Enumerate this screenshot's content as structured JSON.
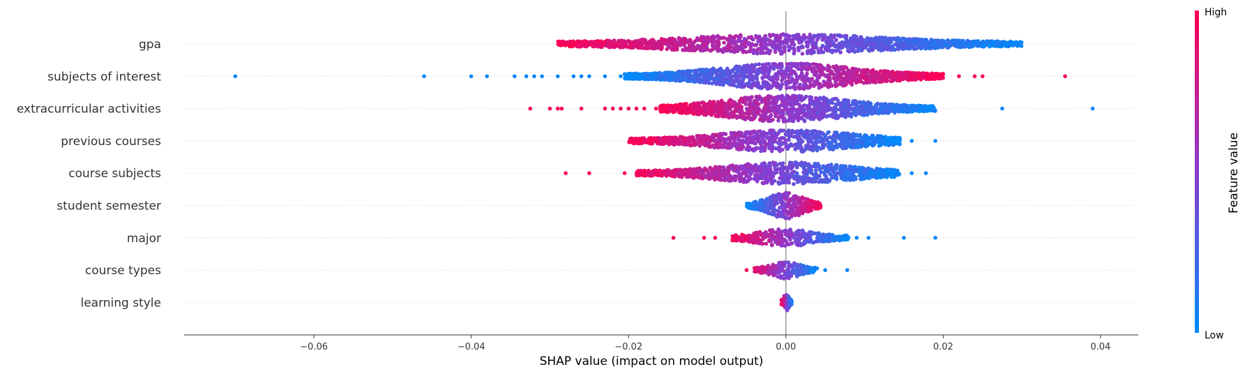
{
  "chart_data": {
    "type": "scatter",
    "variant": "shap-beeswarm",
    "title": "",
    "xlabel": "SHAP value (impact on model output)",
    "ylabel": "",
    "xlim": [
      -0.0765,
      0.0448
    ],
    "xticks": [
      -0.06,
      -0.04,
      -0.02,
      0.0,
      0.02,
      0.04
    ],
    "xtick_labels": [
      "−0.06",
      "−0.04",
      "−0.02",
      "0.00",
      "0.02",
      "0.04"
    ],
    "grid": false,
    "features": [
      {
        "name": "gpa",
        "min": -0.0292,
        "max": 0.03,
        "corr": -1,
        "width": 0.7,
        "outliers": [],
        "dense": [
          [
            -0.029,
            0.03
          ]
        ]
      },
      {
        "name": "subjects of interest",
        "min": -0.0205,
        "max": 0.02,
        "corr": 1,
        "width": 1.0,
        "outliers": [
          -0.07,
          -0.046,
          -0.04,
          -0.038,
          -0.0345,
          -0.033,
          -0.032,
          -0.031,
          -0.029,
          -0.027,
          -0.026,
          -0.025,
          -0.023,
          -0.021,
          0.022,
          0.024,
          0.025,
          0.0355
        ],
        "dense": [
          [
            -0.0205,
            0.02
          ]
        ]
      },
      {
        "name": "extracurricular activities",
        "min": -0.016,
        "max": 0.019,
        "corr": -1,
        "width": 1.0,
        "outliers": [
          -0.0325,
          -0.03,
          -0.029,
          -0.0285,
          -0.026,
          -0.023,
          -0.022,
          -0.021,
          -0.02,
          -0.019,
          -0.018,
          -0.0165,
          0.0275,
          0.039
        ],
        "dense": [
          [
            -0.016,
            0.019
          ]
        ]
      },
      {
        "name": "previous courses",
        "min": -0.02,
        "max": 0.0145,
        "corr": -1,
        "width": 0.8,
        "outliers": [
          0.016,
          0.019
        ],
        "dense": [
          [
            -0.02,
            0.0145
          ]
        ]
      },
      {
        "name": "course subjects",
        "min": -0.0205,
        "max": 0.0145,
        "corr": -1,
        "width": 0.8,
        "outliers": [
          -0.028,
          -0.025,
          -0.0205,
          0.016,
          0.0178
        ],
        "dense": [
          [
            -0.019,
            0.0145
          ]
        ]
      },
      {
        "name": "student semester",
        "min": -0.005,
        "max": 0.0045,
        "corr": 1,
        "width": 1.0,
        "outliers": [],
        "dense": [
          [
            -0.005,
            0.0045
          ]
        ]
      },
      {
        "name": "major",
        "min": -0.007,
        "max": 0.008,
        "corr": -1,
        "width": 0.6,
        "outliers": [
          -0.0143,
          -0.0104,
          -0.009,
          0.009,
          0.0105,
          0.015,
          0.019
        ],
        "dense": [
          [
            -0.0068,
            0.008
          ]
        ]
      },
      {
        "name": "course types",
        "min": -0.005,
        "max": 0.004,
        "corr": -1,
        "width": 0.6,
        "outliers": [
          -0.005,
          0.005,
          0.0078
        ],
        "dense": [
          [
            -0.004,
            0.004
          ]
        ]
      },
      {
        "name": "learning style",
        "min": -0.0006,
        "max": 0.0008,
        "corr": -1,
        "width": 0.6,
        "outliers": [],
        "dense": [
          [
            -0.0006,
            0.0008
          ]
        ]
      }
    ]
  },
  "colorbar": {
    "label": "Feature value",
    "high_label": "High",
    "low_label": "Low",
    "high_color": "#ff0052",
    "mid_color": "#8a3bd0",
    "low_color": "#008bfb"
  }
}
